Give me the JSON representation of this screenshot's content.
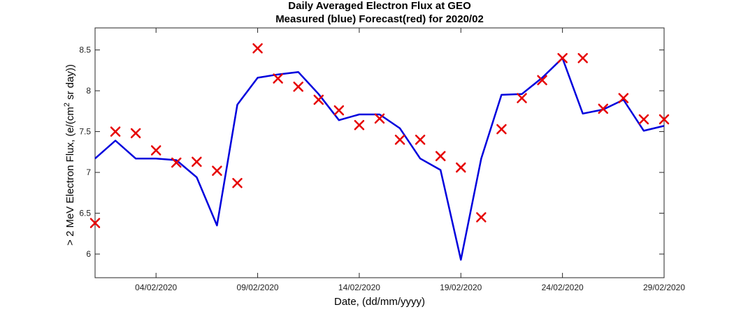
{
  "chart_data": {
    "type": "line",
    "title": "Daily Averaged Electron Flux at GEO",
    "subtitle": "Measured (blue) Forecast(red) for 2020/02",
    "xlabel": "Date, (dd/mm/yyyy)",
    "ylabel_main": "> 2 MeV Electron Flux,  (e/(cm",
    "ylabel_sup": "2",
    "ylabel_tail": " sr day))",
    "x_tick_labels": [
      "04/02/2020",
      "09/02/2020",
      "14/02/2020",
      "19/02/2020",
      "24/02/2020",
      "29/02/2020"
    ],
    "x_tick_days": [
      4,
      9,
      14,
      19,
      24,
      29
    ],
    "xlim": [
      1,
      29
    ],
    "y_ticks": [
      6,
      6.5,
      7,
      7.5,
      8,
      8.5
    ],
    "y_tick_labels": [
      "6",
      "6.5",
      "7",
      "7.5",
      "8",
      "8.5"
    ],
    "ylim": [
      5.71,
      8.77
    ],
    "grid": false,
    "series": [
      {
        "name": "Measured",
        "style": "line",
        "color": "#0000dd",
        "x": [
          1,
          2,
          3,
          4,
          5,
          6,
          7,
          8,
          9,
          10,
          11,
          12,
          13,
          14,
          15,
          16,
          17,
          18,
          19,
          20,
          21,
          22,
          23,
          24,
          25,
          26,
          27,
          28,
          29
        ],
        "y": [
          7.17,
          7.39,
          7.17,
          7.17,
          7.15,
          6.94,
          6.35,
          7.83,
          8.16,
          8.2,
          8.23,
          7.96,
          7.64,
          7.71,
          7.71,
          7.54,
          7.17,
          7.03,
          5.93,
          7.17,
          7.95,
          7.96,
          8.16,
          8.4,
          7.72,
          7.77,
          7.89,
          7.51,
          7.57
        ]
      },
      {
        "name": "Forecast",
        "style": "marker-x",
        "color": "#e60000",
        "x": [
          1,
          2,
          3,
          4,
          5,
          6,
          7,
          8,
          9,
          10,
          11,
          12,
          13,
          14,
          15,
          16,
          17,
          18,
          19,
          20,
          21,
          22,
          23,
          24,
          25,
          26,
          27,
          28,
          29
        ],
        "y": [
          6.38,
          7.5,
          7.48,
          7.27,
          7.12,
          7.13,
          7.02,
          6.87,
          8.52,
          8.15,
          8.05,
          7.89,
          7.76,
          7.58,
          7.66,
          7.4,
          7.4,
          7.2,
          7.06,
          6.45,
          7.53,
          7.91,
          8.13,
          8.4,
          8.4,
          7.78,
          7.91,
          7.65,
          7.65
        ]
      }
    ]
  }
}
